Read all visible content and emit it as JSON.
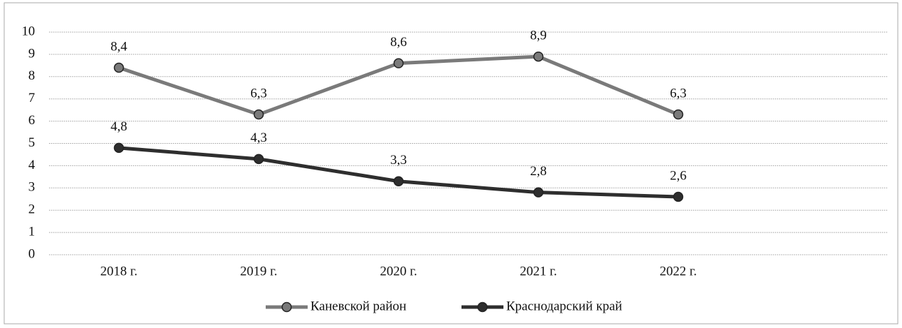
{
  "chart_data": {
    "type": "line",
    "categories": [
      "2018 г.",
      "2019 г.",
      "2020 г.",
      "2021 г.",
      "2022 г.",
      null
    ],
    "series": [
      {
        "name": "Каневской район",
        "color": "#7a7a7a",
        "values": [
          8.4,
          6.3,
          8.6,
          8.9,
          6.3,
          null
        ],
        "value_labels": [
          "8,4",
          "6,3",
          "8,6",
          "8,9",
          "6,3",
          null
        ]
      },
      {
        "name": "Краснодарский край",
        "color": "#2e2e2e",
        "values": [
          4.8,
          4.3,
          3.3,
          2.8,
          2.6,
          null
        ],
        "value_labels": [
          "4,8",
          "4,3",
          "3,3",
          "2,8",
          "2,6",
          null
        ]
      }
    ],
    "ylim": [
      0,
      10
    ],
    "yticks": [
      0,
      1,
      2,
      3,
      4,
      5,
      6,
      7,
      8,
      9,
      10
    ],
    "grid": true,
    "legend": "bottom"
  }
}
